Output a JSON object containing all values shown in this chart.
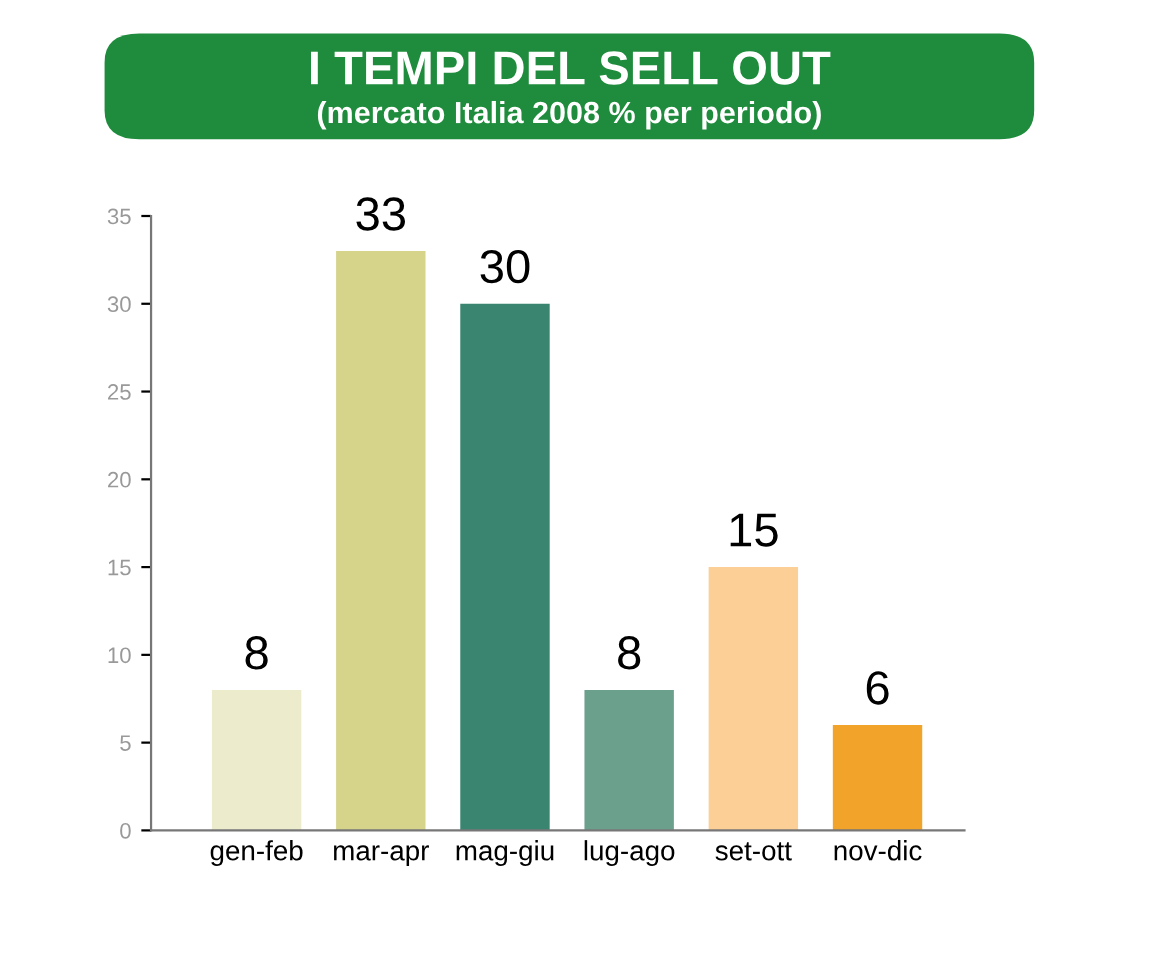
{
  "chart_data": {
    "type": "bar",
    "title": "I TEMPI DEL SELL OUT",
    "subtitle": "(mercato Italia 2008 % per periodo)",
    "categories": [
      "gen-feb",
      "mar-apr",
      "mag-giu",
      "lug-ago",
      "set-ott",
      "nov-dic"
    ],
    "values": [
      8,
      33,
      30,
      8,
      15,
      6
    ],
    "colors": [
      "#ecebcb",
      "#d6d48b",
      "#3a8570",
      "#6ba08c",
      "#fbcf95",
      "#f2a42a"
    ],
    "ylim": [
      0,
      35
    ],
    "yticks": [
      0,
      5,
      10,
      15,
      20,
      25,
      30,
      35
    ],
    "data_labels": true,
    "grid": false,
    "legend": false
  }
}
